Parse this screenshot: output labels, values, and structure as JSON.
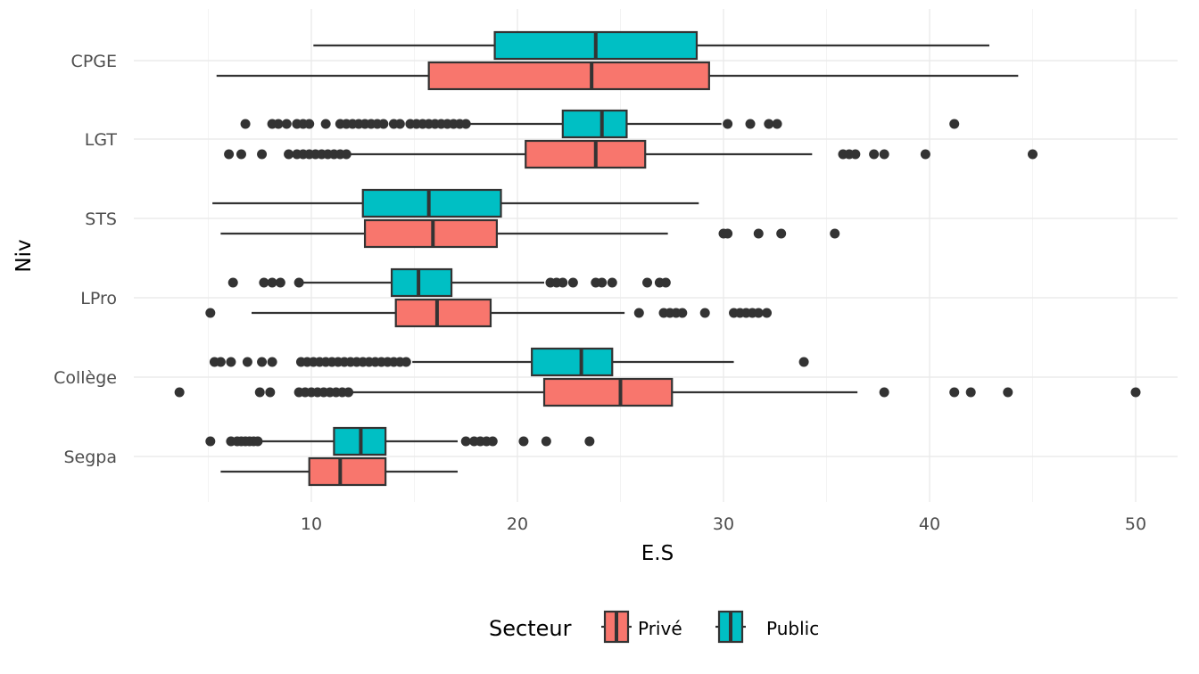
{
  "chart_data": {
    "type": "boxplot",
    "orientation": "horizontal",
    "title": "",
    "xlabel": "E.S",
    "ylabel": "Niv",
    "xlim": [
      2.5,
      51.5
    ],
    "x_ticks": [
      10,
      20,
      30,
      40,
      50
    ],
    "categories": [
      "Segpa",
      "Collège",
      "LPro",
      "STS",
      "LGT",
      "CPGE"
    ],
    "grid": true,
    "legend": {
      "title": "Secteur",
      "position": "bottom",
      "entries": [
        {
          "name": "Privé",
          "color": "#F8766D"
        },
        {
          "name": "Public",
          "color": "#00BFC4"
        }
      ]
    },
    "series": [
      {
        "name": "Privé",
        "color": "#F8766D",
        "boxes": [
          {
            "category": "Segpa",
            "whisker_low": 5.6,
            "q1": 9.9,
            "median": 11.4,
            "q3": 13.6,
            "whisker_high": 17.1,
            "outliers": []
          },
          {
            "category": "Collège",
            "whisker_low": 12.0,
            "q1": 21.3,
            "median": 25.0,
            "q3": 27.5,
            "whisker_high": 36.5,
            "outliers": [
              3.6,
              7.5,
              8.0,
              9.4,
              9.7,
              10.0,
              10.3,
              10.6,
              10.9,
              11.2,
              11.5,
              11.8,
              37.8,
              41.2,
              42.0,
              43.8,
              50.0
            ]
          },
          {
            "category": "LPro",
            "whisker_low": 7.1,
            "q1": 14.1,
            "median": 16.1,
            "q3": 18.7,
            "whisker_high": 25.2,
            "outliers": [
              5.1,
              25.9,
              27.1,
              27.4,
              27.7,
              28.0,
              29.1,
              30.5,
              30.8,
              31.1,
              31.4,
              31.7,
              32.1
            ]
          },
          {
            "category": "STS",
            "whisker_low": 5.6,
            "q1": 12.6,
            "median": 15.9,
            "q3": 19.0,
            "whisker_high": 27.3,
            "outliers": [
              30.0,
              30.2,
              31.7,
              32.8,
              35.4
            ]
          },
          {
            "category": "LGT",
            "whisker_low": 11.8,
            "q1": 20.4,
            "median": 23.8,
            "q3": 26.2,
            "whisker_high": 34.3,
            "outliers": [
              6.0,
              6.6,
              7.6,
              8.9,
              9.3,
              9.6,
              9.9,
              10.2,
              10.5,
              10.8,
              11.1,
              11.4,
              11.7,
              35.8,
              36.1,
              36.4,
              37.3,
              37.8,
              39.8,
              45.0
            ]
          },
          {
            "category": "CPGE",
            "whisker_low": 5.4,
            "q1": 15.7,
            "median": 23.6,
            "q3": 29.3,
            "whisker_high": 44.3,
            "outliers": []
          }
        ]
      },
      {
        "name": "Public",
        "color": "#00BFC4",
        "boxes": [
          {
            "category": "Segpa",
            "whisker_low": 7.5,
            "q1": 11.1,
            "median": 12.4,
            "q3": 13.6,
            "whisker_high": 17.1,
            "outliers": [
              5.1,
              6.1,
              6.4,
              6.6,
              6.8,
              7.0,
              7.2,
              7.4,
              17.5,
              17.9,
              18.2,
              18.5,
              18.8,
              20.3,
              21.4,
              23.5
            ]
          },
          {
            "category": "Collège",
            "whisker_low": 14.9,
            "q1": 20.7,
            "median": 23.1,
            "q3": 24.6,
            "whisker_high": 30.5,
            "outliers": [
              5.3,
              5.6,
              6.1,
              6.9,
              7.6,
              8.1,
              9.5,
              9.8,
              10.1,
              10.4,
              10.7,
              11.0,
              11.3,
              11.6,
              11.9,
              12.2,
              12.5,
              12.8,
              13.1,
              13.4,
              13.7,
              14.0,
              14.3,
              14.6,
              33.9
            ]
          },
          {
            "category": "LPro",
            "whisker_low": 9.5,
            "q1": 13.9,
            "median": 15.2,
            "q3": 16.8,
            "whisker_high": 21.3,
            "outliers": [
              6.2,
              7.7,
              8.1,
              8.5,
              9.4,
              21.6,
              21.9,
              22.2,
              22.7,
              23.8,
              24.1,
              24.6,
              26.3,
              26.9,
              27.2
            ]
          },
          {
            "category": "STS",
            "whisker_low": 5.2,
            "q1": 12.5,
            "median": 15.7,
            "q3": 19.2,
            "whisker_high": 28.8,
            "outliers": []
          },
          {
            "category": "LGT",
            "whisker_low": 17.6,
            "q1": 22.2,
            "median": 24.1,
            "q3": 25.3,
            "whisker_high": 29.9,
            "outliers": [
              6.8,
              8.1,
              8.4,
              8.8,
              9.3,
              9.6,
              9.9,
              10.7,
              11.4,
              11.7,
              12.0,
              12.3,
              12.6,
              12.9,
              13.2,
              13.5,
              14.0,
              14.3,
              14.8,
              15.1,
              15.4,
              15.7,
              16.0,
              16.3,
              16.6,
              16.9,
              17.2,
              17.5,
              30.2,
              31.3,
              32.2,
              32.6,
              41.2
            ]
          },
          {
            "category": "CPGE",
            "whisker_low": 10.1,
            "q1": 18.9,
            "median": 23.8,
            "q3": 28.7,
            "whisker_high": 42.9,
            "outliers": []
          }
        ]
      }
    ]
  }
}
